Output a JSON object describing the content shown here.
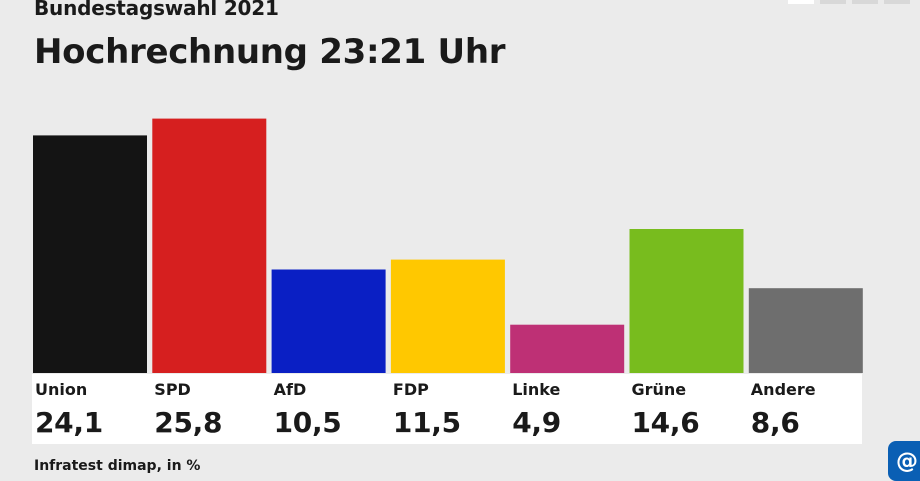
{
  "header": {
    "supertitle": "Bundestagswahl 2021",
    "title": "Hochrechnung 23:21 Uhr"
  },
  "footer": {
    "source": "Infratest dimap, in %"
  },
  "logo": {
    "icon": "tagesschau-logo-icon"
  },
  "chart_data": {
    "type": "bar",
    "categories": [
      "Union",
      "SPD",
      "AfD",
      "FDP",
      "Linke",
      "Grüne",
      "Andere"
    ],
    "values": [
      24.1,
      25.8,
      10.5,
      11.5,
      4.9,
      14.6,
      8.6
    ],
    "value_labels": [
      "24,1",
      "25,8",
      "10,5",
      "11,5",
      "4,9",
      "14,6",
      "8,6"
    ],
    "colors": [
      "#141414",
      "#d61f1f",
      "#0a1fc4",
      "#ffc800",
      "#be3075",
      "#78bc1e",
      "#6e6e6e"
    ],
    "title": "Hochrechnung 23:21 Uhr",
    "ylim": [
      0,
      28.5
    ],
    "grid": false
  }
}
